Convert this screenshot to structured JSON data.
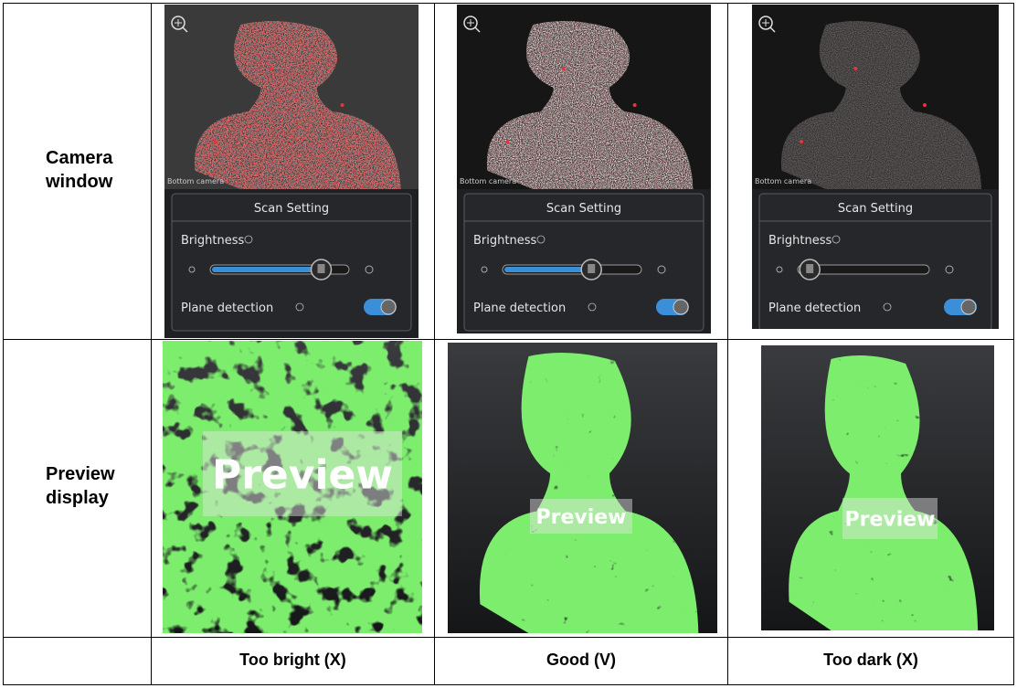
{
  "table": {
    "row_headers": [
      "Camera window",
      "Preview display"
    ],
    "columns": [
      {
        "label": "Too bright (X)",
        "camera": {
          "caption": "Bottom camera",
          "panel_title": "Scan Setting",
          "brightness_label": "Brightness",
          "plane_label": "Plane detection"
        },
        "preview_label": "Preview"
      },
      {
        "label": "Good (V)",
        "camera": {
          "caption": "Bottom camera",
          "panel_title": "Scan Setting",
          "brightness_label": "Brightness",
          "plane_label": "Plane detection"
        },
        "preview_label": "Preview"
      },
      {
        "label": "Too dark (X)",
        "camera": {
          "caption": "Bottom camera",
          "panel_title": "Scan Setting",
          "brightness_label": "Brightness",
          "plane_label": "Plane detection"
        },
        "preview_label": "Preview"
      }
    ]
  }
}
